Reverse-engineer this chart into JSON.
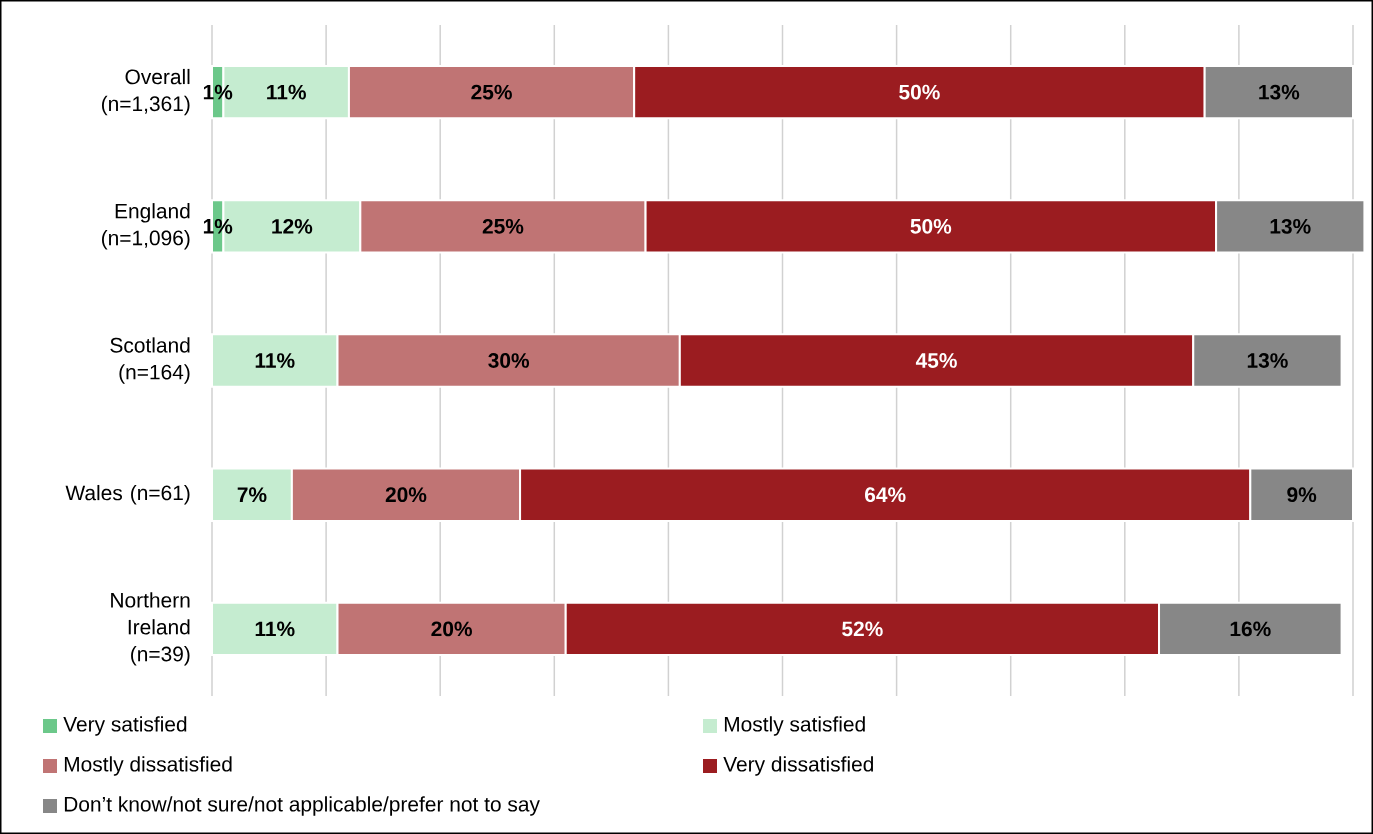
{
  "chart_data": {
    "type": "bar",
    "orientation": "horizontal",
    "stacked": true,
    "categories": [
      "Overall (n=1,361)",
      "England (n=1,096)",
      "Scotland (n=164)",
      "Wales (n=61)",
      "Northern Ireland (n=39)"
    ],
    "series": [
      {
        "name": "Very satisfied",
        "color": "#6cc88a",
        "values": [
          1,
          1,
          null,
          null,
          null
        ],
        "value_labels": [
          "1%",
          "1%",
          null,
          null,
          null
        ]
      },
      {
        "name": "Mostly satisfied",
        "color": "#c5ecd0",
        "values": [
          11,
          12,
          11,
          7,
          11
        ],
        "value_labels": [
          "11%",
          "12%",
          "11%",
          "7%",
          "11%"
        ]
      },
      {
        "name": "Mostly dissatisfied",
        "color": "#c07474",
        "values": [
          25,
          25,
          30,
          20,
          20
        ],
        "value_labels": [
          "25%",
          "25%",
          "30%",
          "20%",
          "20%"
        ]
      },
      {
        "name": "Very dissatisfied",
        "color": "#9b1c20",
        "values": [
          50,
          50,
          45,
          64,
          52
        ],
        "value_labels": [
          "50%",
          "50%",
          "45%",
          "64%",
          "52%"
        ]
      },
      {
        "name": "Don’t know/not sure/not applicable/prefer not to say",
        "color": "#878787",
        "values": [
          13,
          13,
          13,
          9,
          16
        ],
        "value_labels": [
          "13%",
          "13%",
          "13%",
          "9%",
          "16%"
        ]
      }
    ],
    "xlim": [
      0,
      101
    ],
    "xticks": [
      {
        "value": 0,
        "label": null
      },
      {
        "value": 10,
        "label": null
      },
      {
        "value": 20,
        "label": null
      },
      {
        "value": 30,
        "label": null
      },
      {
        "value": 40,
        "label": null
      },
      {
        "value": 50,
        "label": null
      },
      {
        "value": 60,
        "label": null
      },
      {
        "value": 70,
        "label": null
      },
      {
        "value": 80,
        "label": null
      },
      {
        "value": 90,
        "label": null
      },
      {
        "value": 100,
        "label": null
      }
    ],
    "tick_labels": "y",
    "grid": "x",
    "legend": "bottom"
  }
}
